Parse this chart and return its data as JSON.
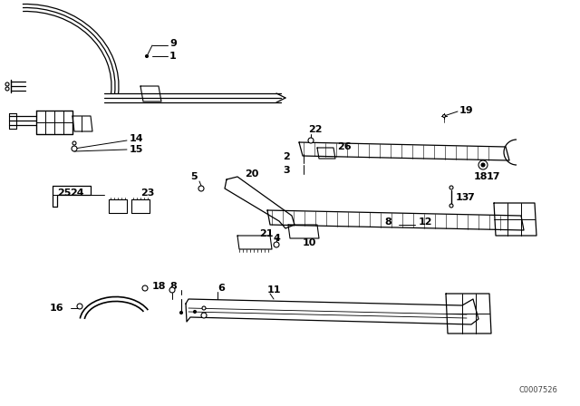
{
  "bg_color": "#ffffff",
  "line_color": "#000000",
  "part_number_text": "C0007526",
  "fig_width": 6.4,
  "fig_height": 4.48,
  "dpi": 100
}
